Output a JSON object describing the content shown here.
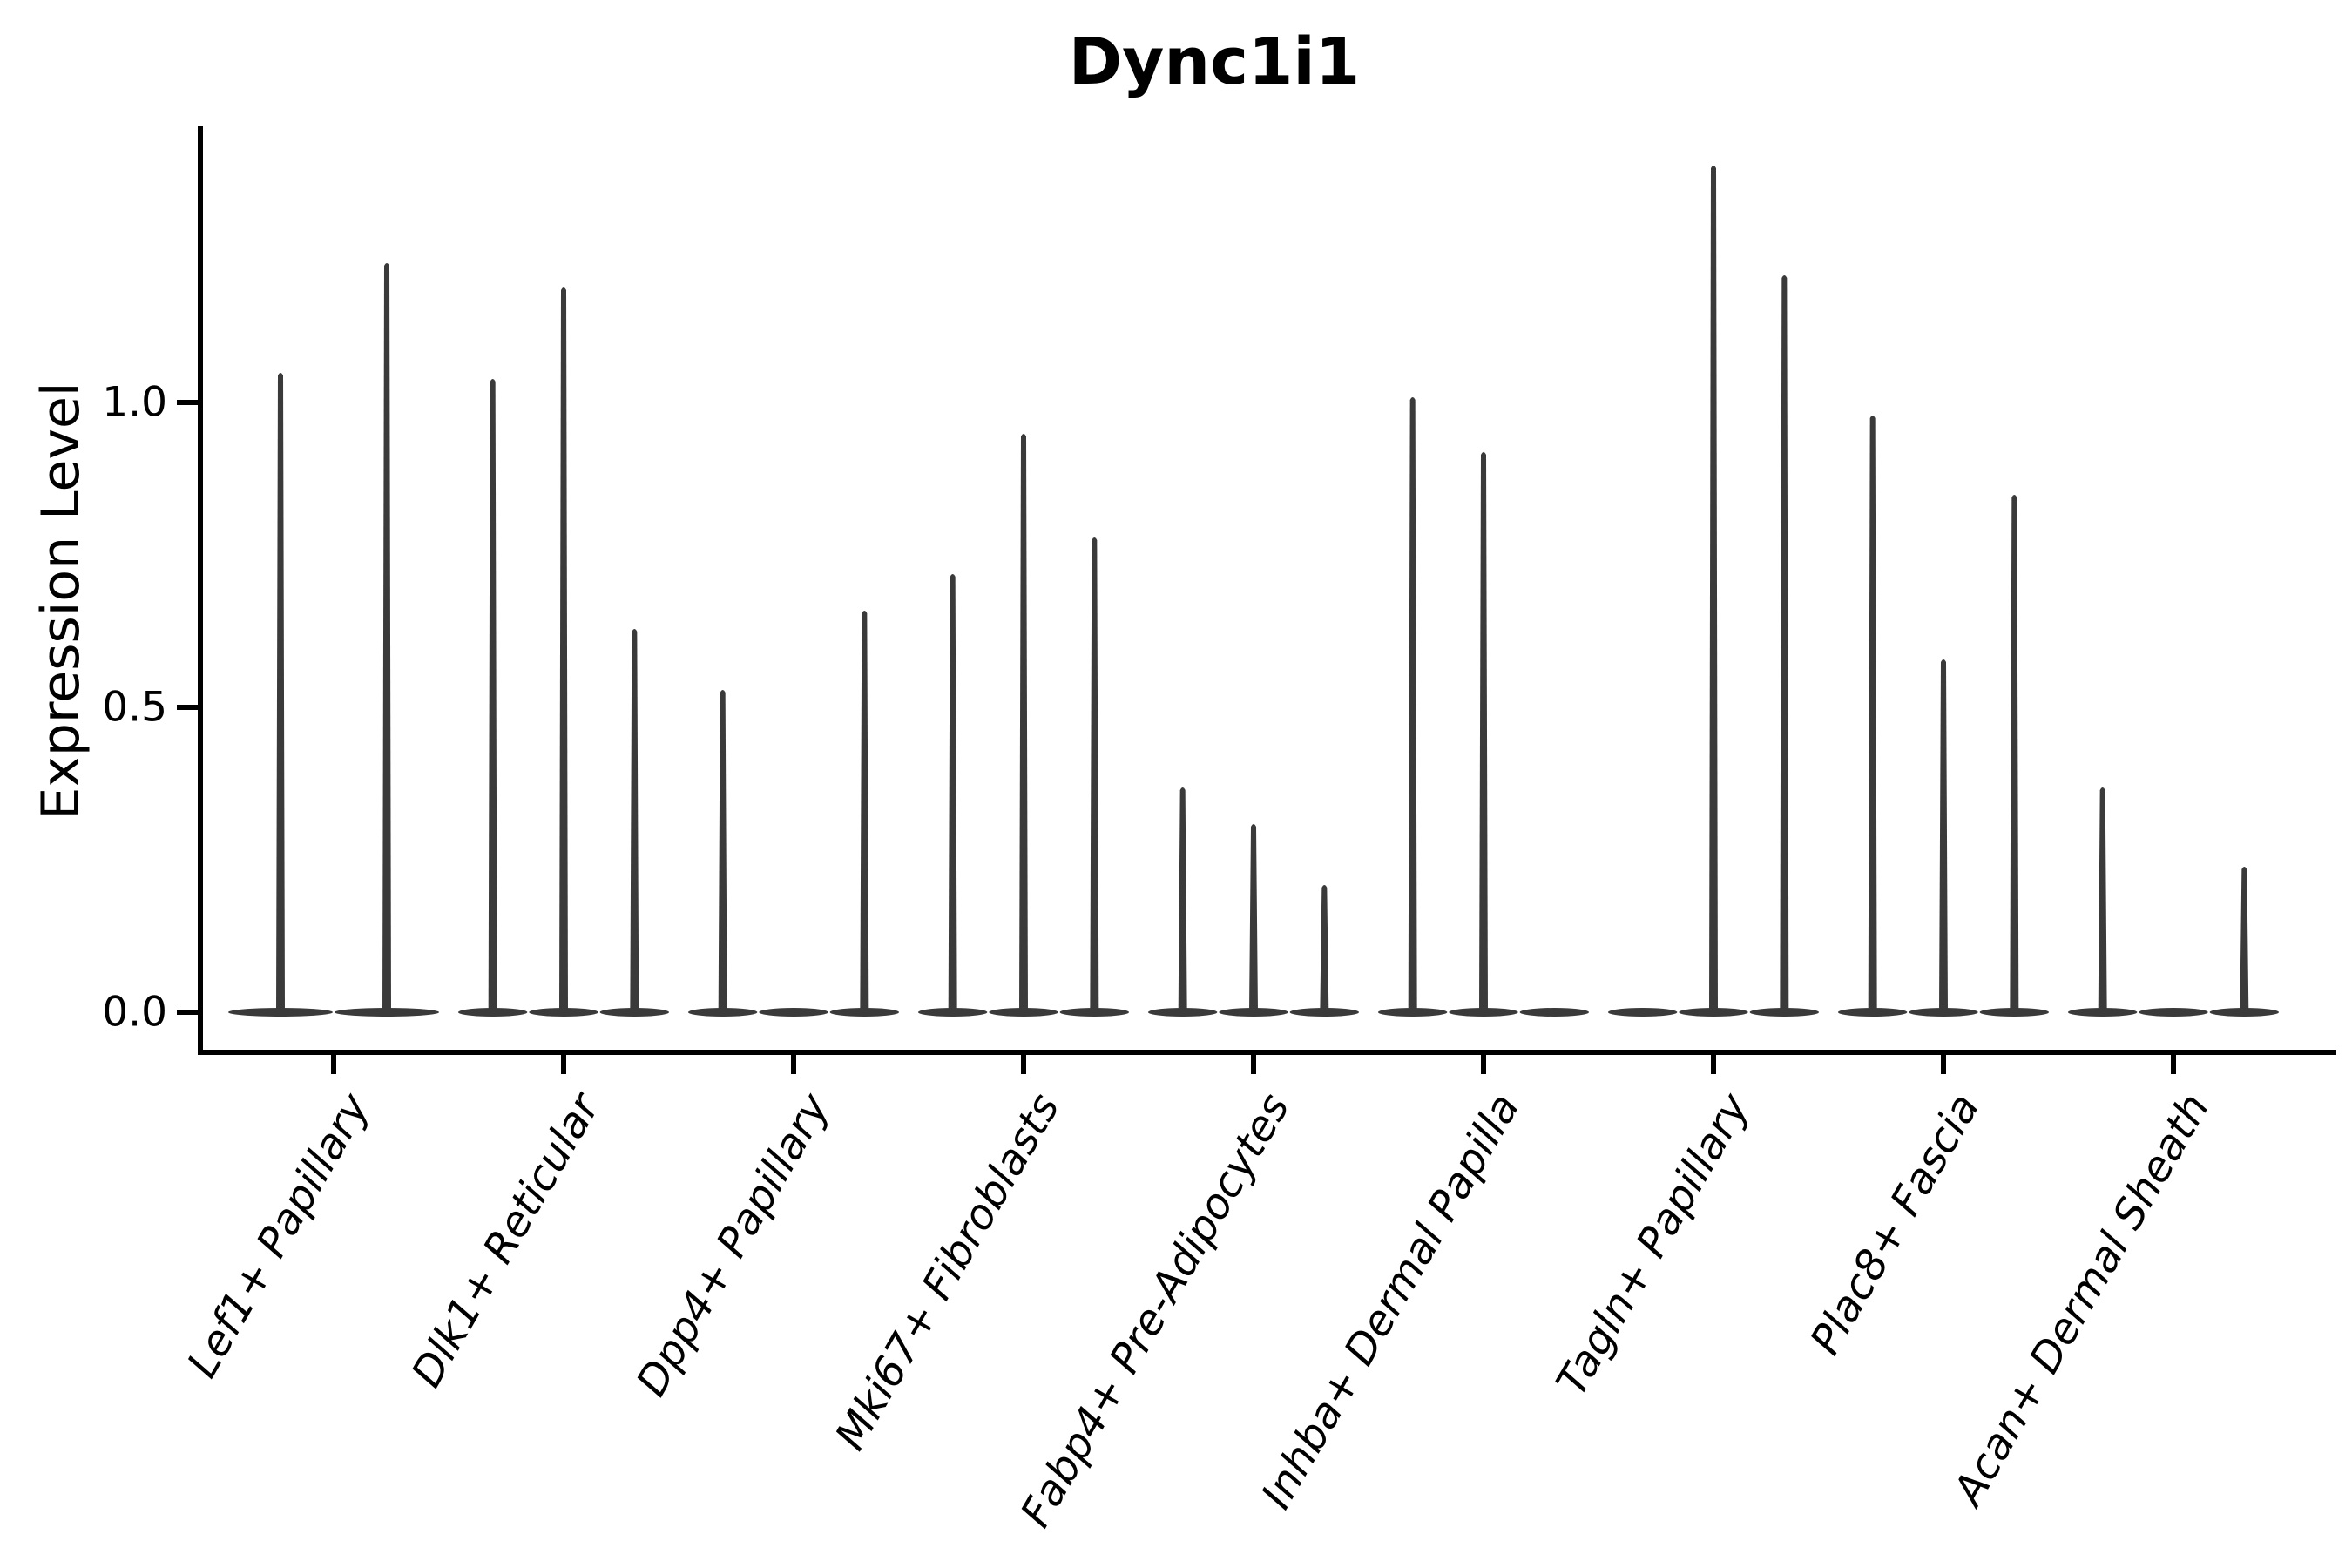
{
  "chart_data": {
    "type": "violin",
    "title": "Dync1i1",
    "ylabel": "Expression Level",
    "xlabel": "",
    "ylim": [
      -0.06,
      1.45
    ],
    "grid": false,
    "legend": null,
    "yticks": [
      {
        "label": "0.0",
        "value": 0.0
      },
      {
        "label": "0.5",
        "value": 0.5
      },
      {
        "label": "1.0",
        "value": 1.0
      }
    ],
    "categories": [
      "Lef1+ Papillary",
      "Dlk1+ Reticular",
      "Dpp4+ Papillary",
      "Mki67+ Fibroblasts",
      "Fabp4+ Pre-Adipocytes",
      "Inhba+ Dermal Papilla",
      "Tagln+ Papillary",
      "Plac8+ Fascia",
      "Acan+ Dermal Sheath"
    ],
    "groups": [
      {
        "category": "Lef1+ Papillary",
        "violin_max_expression": [
          1.05,
          1.23
        ]
      },
      {
        "category": "Dlk1+ Reticular",
        "violin_max_expression": [
          1.04,
          1.19,
          0.63
        ]
      },
      {
        "category": "Dpp4+ Papillary",
        "violin_max_expression": [
          0.53,
          0,
          0.66
        ]
      },
      {
        "category": "Mki67+ Fibroblasts",
        "violin_max_expression": [
          0.72,
          0.95,
          0.78
        ]
      },
      {
        "category": "Fabp4+ Pre-Adipocytes",
        "violin_max_expression": [
          0.37,
          0.31,
          0.21
        ]
      },
      {
        "category": "Inhba+ Dermal Papilla",
        "violin_max_expression": [
          1.01,
          0.92,
          0
        ]
      },
      {
        "category": "Tagln+ Papillary",
        "violin_max_expression": [
          0,
          1.39,
          1.21
        ]
      },
      {
        "category": "Plac8+ Fascia",
        "violin_max_expression": [
          0.98,
          0.58,
          0.85
        ]
      },
      {
        "category": "Acan+ Dermal Sheath",
        "violin_max_expression": [
          0.37,
          0,
          0.24
        ]
      }
    ],
    "note": "Each violin is collapsed flat at expression 0 with a thin spike reaching its maximum expression value; violins with 0 have no spike."
  },
  "style": {
    "violin_color": "#3a3a3a",
    "axis_color": "#000000",
    "text_color": "#000000",
    "background_color": "#ffffff"
  }
}
